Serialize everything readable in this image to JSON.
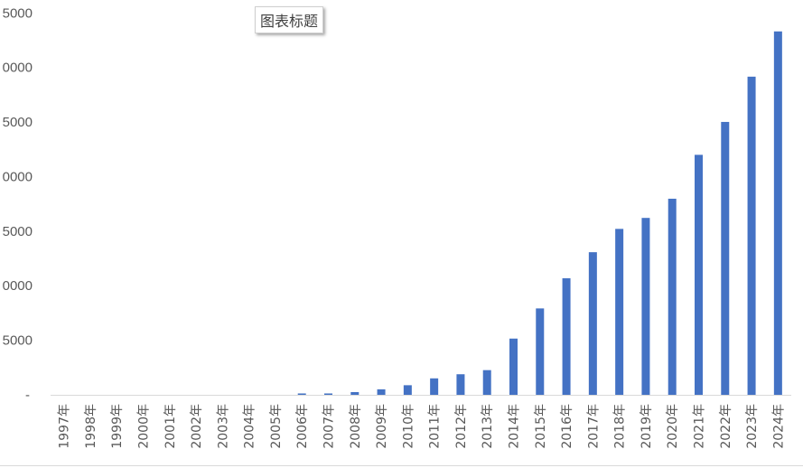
{
  "chart_data": {
    "type": "bar",
    "title": "图表标题",
    "categories": [
      "1997年",
      "1998年",
      "1999年",
      "2000年",
      "2001年",
      "2002年",
      "2003年",
      "2004年",
      "2005年",
      "2006年",
      "2007年",
      "2008年",
      "2009年",
      "2010年",
      "2011年",
      "2012年",
      "2013年",
      "2014年",
      "2015年",
      "2016年",
      "2017年",
      "2018年",
      "2019年",
      "2020年",
      "2021年",
      "2022年",
      "2023年",
      "2024年"
    ],
    "values": [
      0,
      0,
      0,
      0,
      0,
      0,
      0,
      0,
      0,
      1,
      1,
      2,
      4,
      7,
      12,
      15,
      18,
      41,
      63,
      85,
      104,
      121,
      129,
      143,
      175,
      199,
      232,
      265
    ],
    "ytick_labels": [
      "-",
      "5000",
      "0000",
      "5000",
      "0000",
      "5000",
      "0000",
      "5000"
    ],
    "ylim": [
      0,
      280
    ],
    "grid": false,
    "legend": "none",
    "bar_color": "#4472c4",
    "axis_color": "#d9d9d9",
    "label_color": "#595959"
  }
}
